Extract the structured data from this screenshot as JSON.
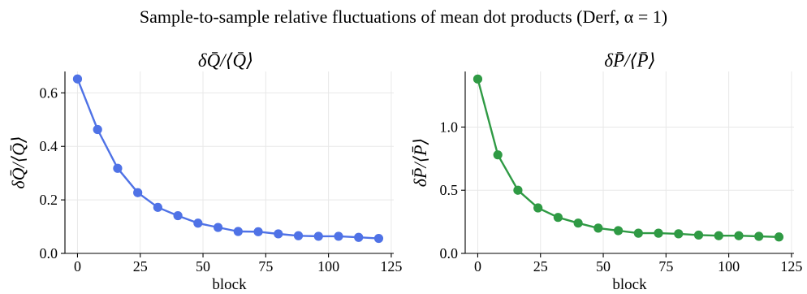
{
  "figure": {
    "suptitle": "Sample-to-sample relative fluctuations of mean dot products (Derf, α = 1)"
  },
  "chart_data": [
    {
      "type": "line",
      "title": "δQ̄/⟨Q̄⟩",
      "xlabel": "block",
      "ylabel": "δQ̄/⟨Q̄⟩",
      "xlim": [
        -5,
        126
      ],
      "ylim": [
        0,
        0.68
      ],
      "xticks": [
        0,
        25,
        50,
        75,
        100,
        125
      ],
      "xtick_labels": [
        "0",
        "25",
        "50",
        "75",
        "100",
        "125"
      ],
      "yticks": [
        0.0,
        0.2,
        0.4,
        0.6
      ],
      "ytick_labels": [
        "0.0",
        "0.2",
        "0.4",
        "0.6"
      ],
      "grid": true,
      "series": [
        {
          "color": "#4f72e6",
          "x": [
            0,
            8,
            16,
            24,
            32,
            40,
            48,
            56,
            64,
            72,
            80,
            88,
            96,
            104,
            112,
            120
          ],
          "y": [
            0.652,
            0.463,
            0.318,
            0.227,
            0.172,
            0.141,
            0.113,
            0.097,
            0.082,
            0.081,
            0.073,
            0.066,
            0.064,
            0.064,
            0.06,
            0.056
          ]
        }
      ]
    },
    {
      "type": "line",
      "title": "δP̄/⟨P̄⟩",
      "xlabel": "block",
      "ylabel": "δP̄/⟨P̄⟩",
      "xlim": [
        -5,
        126
      ],
      "ylim": [
        0,
        1.44
      ],
      "xticks": [
        0,
        25,
        50,
        75,
        100,
        125
      ],
      "xtick_labels": [
        "0",
        "25",
        "50",
        "75",
        "100",
        "125"
      ],
      "yticks": [
        0.0,
        0.5,
        1.0
      ],
      "ytick_labels": [
        "0.0",
        "0.5",
        "1.0"
      ],
      "grid": true,
      "series": [
        {
          "color": "#2f9a44",
          "x": [
            0,
            8,
            16,
            24,
            32,
            40,
            48,
            56,
            64,
            72,
            80,
            88,
            96,
            104,
            112,
            120
          ],
          "y": [
            1.38,
            0.78,
            0.5,
            0.36,
            0.285,
            0.24,
            0.2,
            0.18,
            0.16,
            0.16,
            0.155,
            0.145,
            0.14,
            0.14,
            0.135,
            0.13
          ]
        }
      ]
    }
  ]
}
